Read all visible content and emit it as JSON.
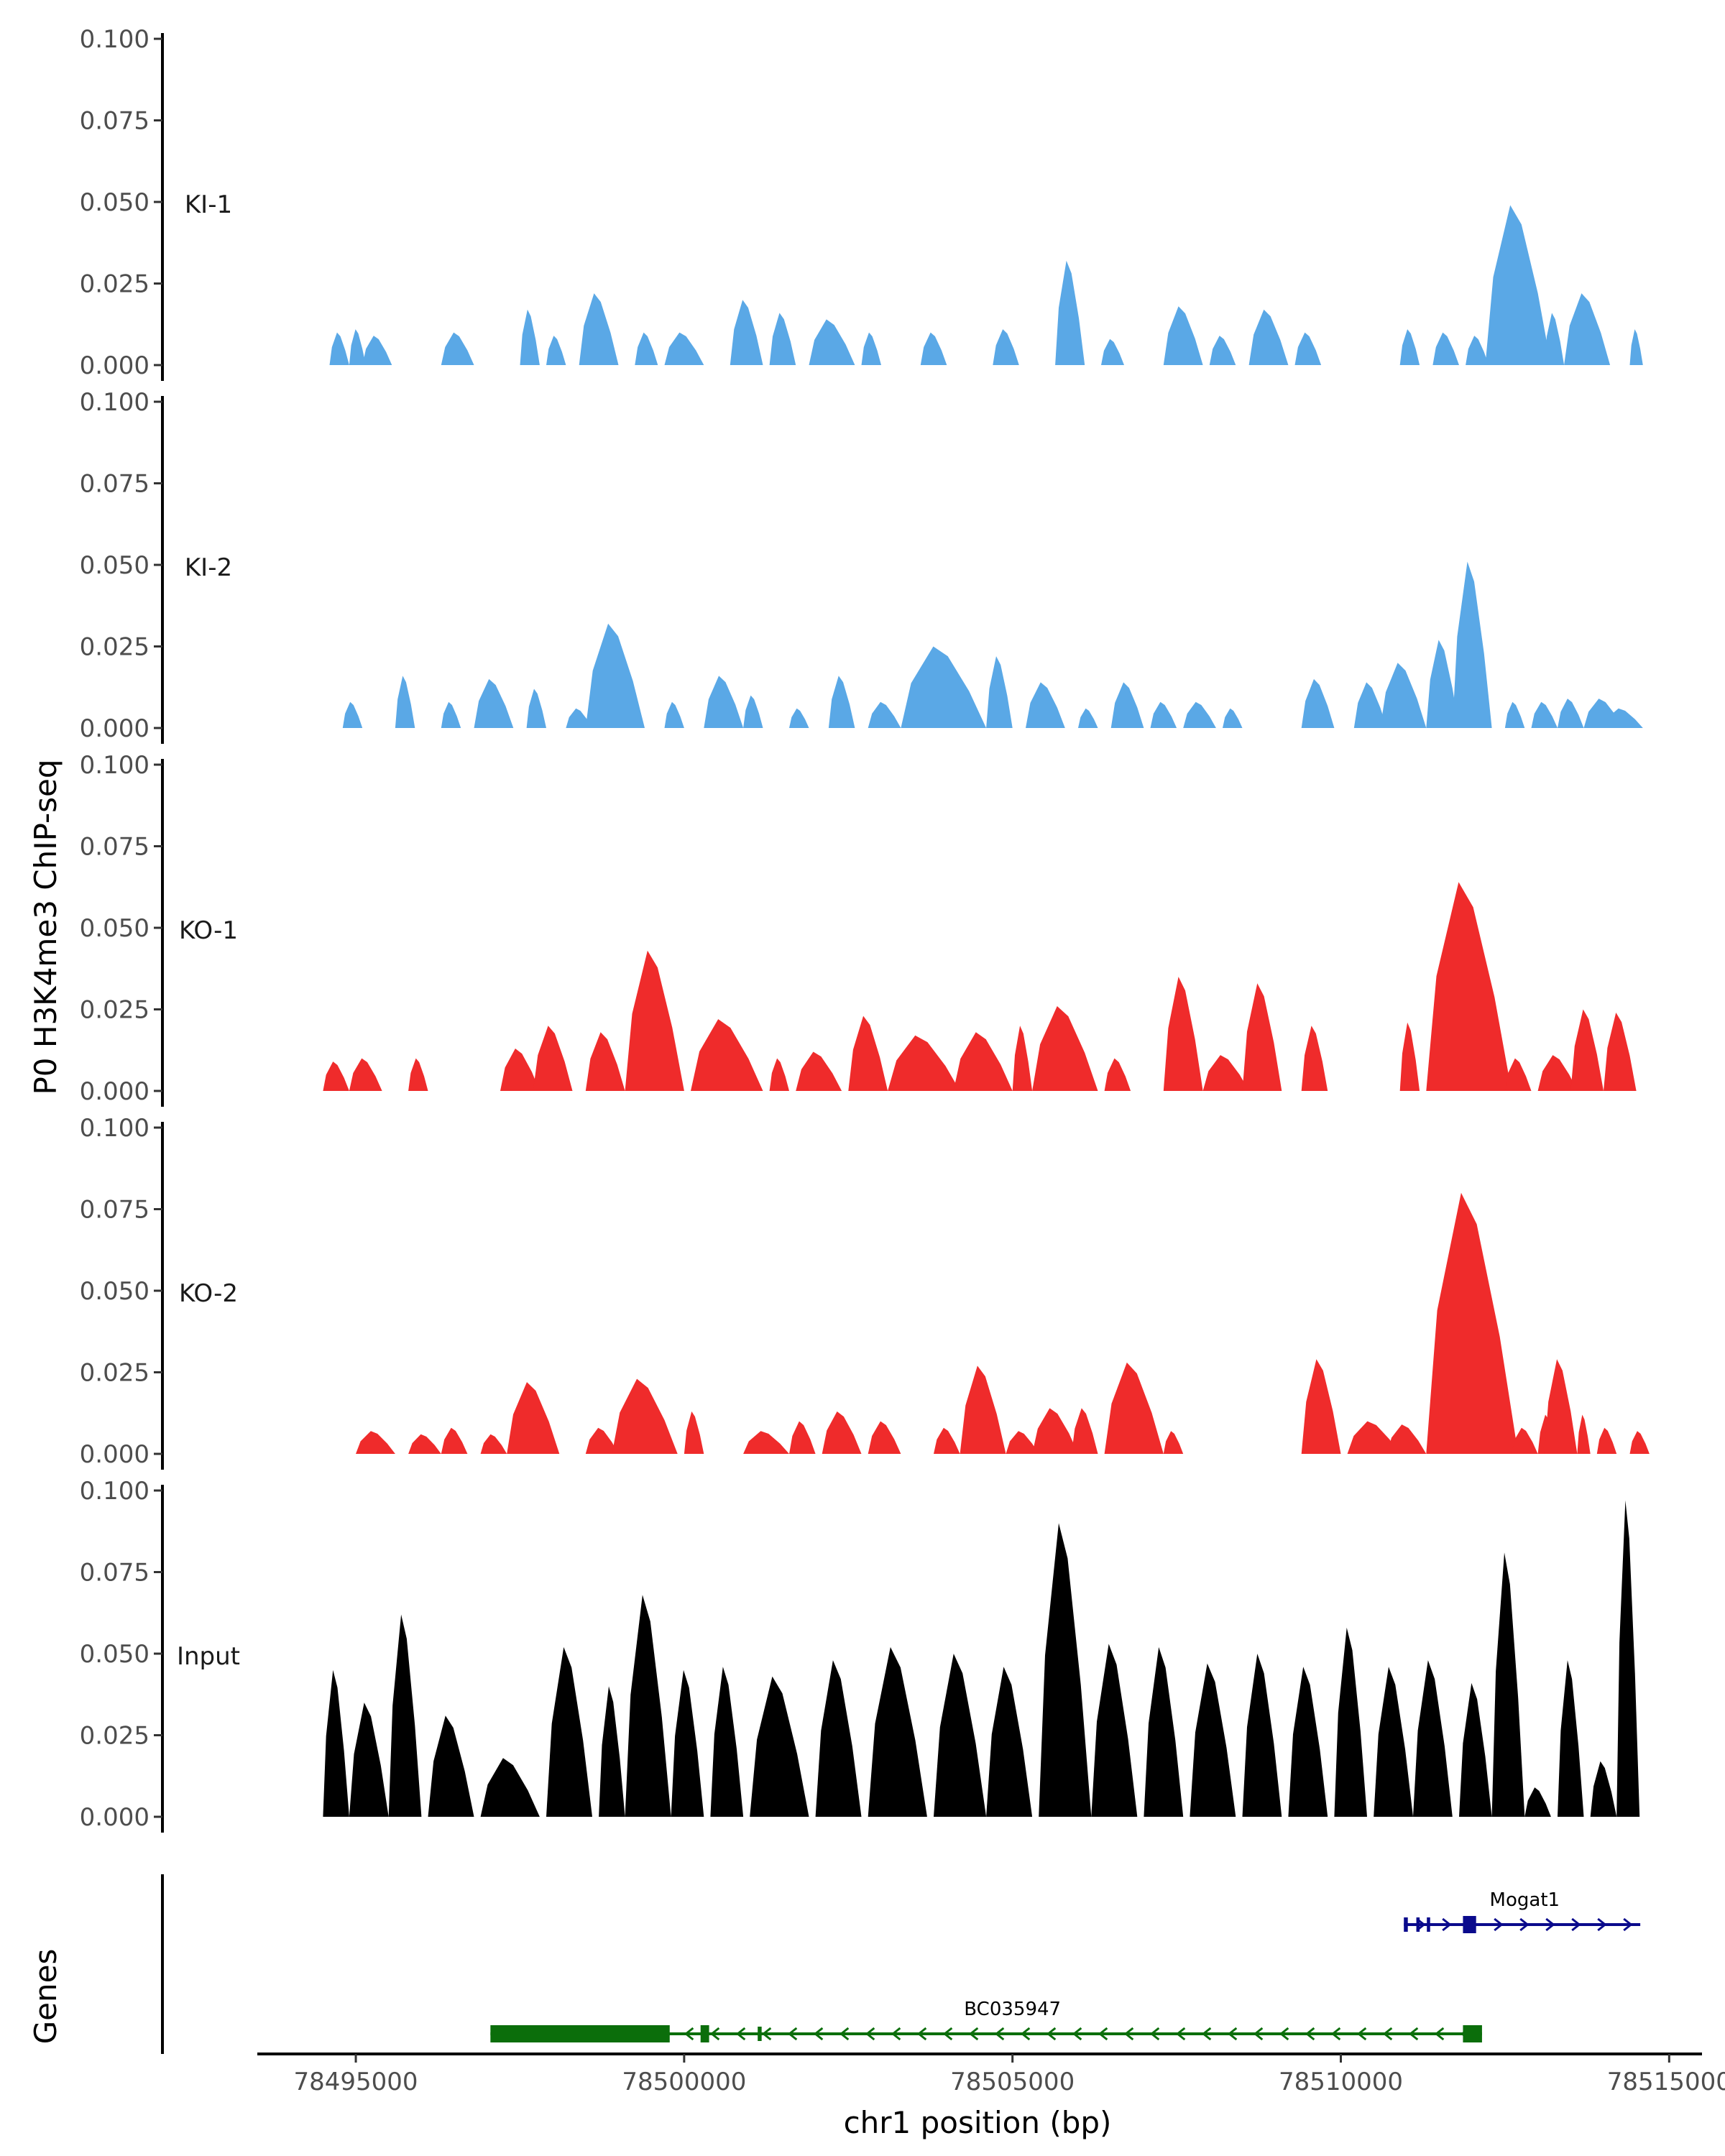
{
  "chart_data": {
    "type": "area",
    "ylabel": "P0 H3K4me3 ChIP-seq",
    "xlabel": "chr1 position (bp)",
    "xlim": [
      78493500,
      78515500
    ],
    "x_ticks": [
      78495000,
      78500000,
      78505000,
      78510000,
      78515000
    ],
    "x_tick_labels": [
      "78495000",
      "78500000",
      "78505000",
      "78510000",
      "78515000"
    ],
    "ylim": [
      0,
      0.1
    ],
    "y_ticks": [
      0,
      0.025,
      0.05,
      0.075,
      0.1
    ],
    "y_tick_labels": [
      "0.000",
      "0.025",
      "0.050",
      "0.075",
      "0.100"
    ],
    "genes_axis_label": "Genes",
    "tracks": [
      {
        "name": "KI-1",
        "color": "#5aa8e6",
        "peaks": [
          [
            78494600,
            78494900,
            0.01
          ],
          [
            78494900,
            78495150,
            0.011
          ],
          [
            78495100,
            78495550,
            0.009
          ],
          [
            78496300,
            78496800,
            0.01
          ],
          [
            78497500,
            78497800,
            0.017
          ],
          [
            78497900,
            78498200,
            0.009
          ],
          [
            78498400,
            78499000,
            0.022
          ],
          [
            78499250,
            78499600,
            0.01
          ],
          [
            78499700,
            78500300,
            0.01
          ],
          [
            78500700,
            78501200,
            0.02
          ],
          [
            78501300,
            78501700,
            0.016
          ],
          [
            78501900,
            78502600,
            0.014
          ],
          [
            78502700,
            78503000,
            0.01
          ],
          [
            78503600,
            78504000,
            0.01
          ],
          [
            78504700,
            78505100,
            0.011
          ],
          [
            78505650,
            78506100,
            0.032
          ],
          [
            78506350,
            78506700,
            0.008
          ],
          [
            78507300,
            78507900,
            0.018
          ],
          [
            78508000,
            78508400,
            0.009
          ],
          [
            78508600,
            78509200,
            0.017
          ],
          [
            78509300,
            78509700,
            0.01
          ],
          [
            78510900,
            78511200,
            0.011
          ],
          [
            78511400,
            78511800,
            0.01
          ],
          [
            78511900,
            78512250,
            0.009
          ],
          [
            78512200,
            78513200,
            0.049
          ],
          [
            78513100,
            78513400,
            0.016
          ],
          [
            78513400,
            78514100,
            0.022
          ],
          [
            78514400,
            78514600,
            0.011
          ]
        ]
      },
      {
        "name": "KI-2",
        "color": "#5aa8e6",
        "peaks": [
          [
            78494800,
            78495100,
            0.008
          ],
          [
            78495600,
            78495900,
            0.016
          ],
          [
            78496300,
            78496600,
            0.008
          ],
          [
            78496800,
            78497400,
            0.015
          ],
          [
            78497600,
            78497900,
            0.012
          ],
          [
            78498200,
            78498600,
            0.006
          ],
          [
            78498500,
            78499400,
            0.032
          ],
          [
            78499700,
            78500000,
            0.008
          ],
          [
            78500300,
            78500900,
            0.016
          ],
          [
            78500900,
            78501200,
            0.01
          ],
          [
            78501600,
            78501900,
            0.006
          ],
          [
            78502200,
            78502600,
            0.016
          ],
          [
            78502800,
            78503300,
            0.008
          ],
          [
            78503300,
            78504600,
            0.025
          ],
          [
            78504600,
            78505000,
            0.022
          ],
          [
            78505200,
            78505800,
            0.014
          ],
          [
            78506000,
            78506300,
            0.006
          ],
          [
            78506500,
            78507000,
            0.014
          ],
          [
            78507100,
            78507500,
            0.008
          ],
          [
            78507600,
            78508100,
            0.008
          ],
          [
            78508200,
            78508500,
            0.006
          ],
          [
            78509400,
            78509900,
            0.015
          ],
          [
            78510200,
            78510700,
            0.014
          ],
          [
            78510600,
            78511300,
            0.02
          ],
          [
            78511300,
            78511800,
            0.027
          ],
          [
            78511700,
            78512300,
            0.051
          ],
          [
            78512500,
            78512800,
            0.008
          ],
          [
            78512900,
            78513300,
            0.008
          ],
          [
            78513300,
            78513700,
            0.009
          ],
          [
            78513700,
            78514300,
            0.009
          ],
          [
            78514000,
            78514600,
            0.006
          ]
        ]
      },
      {
        "name": "KO-1",
        "color": "#ef2b2b",
        "peaks": [
          [
            78494500,
            78494900,
            0.009
          ],
          [
            78494900,
            78495400,
            0.01
          ],
          [
            78495800,
            78496100,
            0.01
          ],
          [
            78497200,
            78497800,
            0.013
          ],
          [
            78497700,
            78498300,
            0.02
          ],
          [
            78498500,
            78499100,
            0.018
          ],
          [
            78499100,
            78500000,
            0.043
          ],
          [
            78500100,
            78501200,
            0.022
          ],
          [
            78501300,
            78501600,
            0.01
          ],
          [
            78501700,
            78502400,
            0.012
          ],
          [
            78502500,
            78503100,
            0.023
          ],
          [
            78503100,
            78504200,
            0.017
          ],
          [
            78504100,
            78505000,
            0.018
          ],
          [
            78505000,
            78505300,
            0.02
          ],
          [
            78505300,
            78506300,
            0.026
          ],
          [
            78506400,
            78506800,
            0.01
          ],
          [
            78507300,
            78507900,
            0.035
          ],
          [
            78507900,
            78508600,
            0.011
          ],
          [
            78508500,
            78509100,
            0.033
          ],
          [
            78509400,
            78509800,
            0.02
          ],
          [
            78510900,
            78511200,
            0.021
          ],
          [
            78511300,
            78512600,
            0.064
          ],
          [
            78512500,
            78512900,
            0.01
          ],
          [
            78513000,
            78513600,
            0.011
          ],
          [
            78513500,
            78514000,
            0.025
          ],
          [
            78514000,
            78514500,
            0.024
          ]
        ]
      },
      {
        "name": "KO-2",
        "color": "#ef2b2b",
        "peaks": [
          [
            78495000,
            78495600,
            0.007
          ],
          [
            78495800,
            78496300,
            0.006
          ],
          [
            78496300,
            78496700,
            0.008
          ],
          [
            78496900,
            78497300,
            0.006
          ],
          [
            78497300,
            78498100,
            0.022
          ],
          [
            78498500,
            78499000,
            0.008
          ],
          [
            78498900,
            78499900,
            0.023
          ],
          [
            78500000,
            78500300,
            0.013
          ],
          [
            78500900,
            78501600,
            0.007
          ],
          [
            78501600,
            78502000,
            0.01
          ],
          [
            78502100,
            78502700,
            0.013
          ],
          [
            78502800,
            78503300,
            0.01
          ],
          [
            78503800,
            78504200,
            0.008
          ],
          [
            78504200,
            78504900,
            0.027
          ],
          [
            78504900,
            78505400,
            0.007
          ],
          [
            78505300,
            78506000,
            0.014
          ],
          [
            78505900,
            78506300,
            0.014
          ],
          [
            78506400,
            78507300,
            0.028
          ],
          [
            78507300,
            78507600,
            0.007
          ],
          [
            78509400,
            78510000,
            0.029
          ],
          [
            78510100,
            78510900,
            0.01
          ],
          [
            78510700,
            78511300,
            0.009
          ],
          [
            78511300,
            78512700,
            0.08
          ],
          [
            78512600,
            78513000,
            0.008
          ],
          [
            78513000,
            78513300,
            0.012
          ],
          [
            78513100,
            78513600,
            0.029
          ],
          [
            78513600,
            78513800,
            0.012
          ],
          [
            78513900,
            78514200,
            0.008
          ],
          [
            78514400,
            78514700,
            0.007
          ]
        ]
      },
      {
        "name": "Input",
        "color": "#000000",
        "peaks": [
          [
            78494500,
            78494900,
            0.045
          ],
          [
            78494900,
            78495500,
            0.035
          ],
          [
            78495500,
            78496000,
            0.062
          ],
          [
            78496100,
            78496800,
            0.031
          ],
          [
            78496900,
            78497800,
            0.018
          ],
          [
            78497900,
            78498600,
            0.052
          ],
          [
            78498700,
            78499100,
            0.04
          ],
          [
            78499100,
            78499800,
            0.068
          ],
          [
            78499800,
            78500300,
            0.045
          ],
          [
            78500400,
            78500900,
            0.046
          ],
          [
            78501000,
            78501900,
            0.043
          ],
          [
            78502000,
            78502700,
            0.048
          ],
          [
            78502800,
            78503700,
            0.052
          ],
          [
            78503800,
            78504600,
            0.05
          ],
          [
            78504600,
            78505300,
            0.046
          ],
          [
            78505400,
            78506200,
            0.09
          ],
          [
            78506200,
            78506900,
            0.053
          ],
          [
            78507000,
            78507600,
            0.052
          ],
          [
            78507700,
            78508400,
            0.047
          ],
          [
            78508500,
            78509100,
            0.05
          ],
          [
            78509200,
            78509800,
            0.046
          ],
          [
            78509900,
            78510400,
            0.058
          ],
          [
            78510500,
            78511100,
            0.046
          ],
          [
            78511100,
            78511700,
            0.048
          ],
          [
            78511800,
            78512300,
            0.041
          ],
          [
            78512300,
            78512800,
            0.081
          ],
          [
            78512800,
            78513200,
            0.009
          ],
          [
            78513300,
            78513700,
            0.048
          ],
          [
            78513800,
            78514200,
            0.017
          ],
          [
            78514200,
            78514550,
            0.097
          ]
        ]
      }
    ],
    "genes": [
      {
        "name": "Mogat1",
        "strand": "+",
        "color": "#0a0a8c",
        "start": 78510960,
        "end": 78514560,
        "exons": [
          [
            78510960,
            78511020,
            "thin"
          ],
          [
            78511150,
            78511200,
            "thin"
          ],
          [
            78511310,
            78511360,
            "thin"
          ],
          [
            78511860,
            78512060,
            "thick"
          ]
        ]
      },
      {
        "name": "BC035947",
        "strand": "-",
        "color": "#0b6e0b",
        "start": 78497050,
        "end": 78512150,
        "exons": [
          [
            78497050,
            78499780,
            "thick"
          ],
          [
            78500250,
            78500380,
            "thick"
          ],
          [
            78501120,
            78501180,
            "thin"
          ],
          [
            78511860,
            78512150,
            "thick"
          ]
        ]
      }
    ]
  }
}
